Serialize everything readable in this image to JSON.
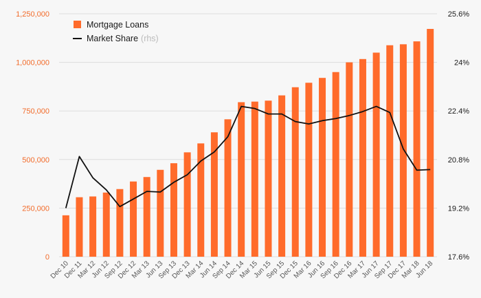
{
  "chart_data": {
    "type": "bar",
    "categories": [
      "Dec 10",
      "Dec 11",
      "Mar 12",
      "Jun 12",
      "Sep 12",
      "Dec 12",
      "Mar 13",
      "Jun 13",
      "Sep 13",
      "Dec 13",
      "Mar 14",
      "Jun 14",
      "Sep 14",
      "Dec 14",
      "Mar 15",
      "Jun 15",
      "Sep 15",
      "Dec 15",
      "Mar 16",
      "Jun 16",
      "Sep 16",
      "Dec 16",
      "Mar 17",
      "Jun 17",
      "Sep 17",
      "Dec 17",
      "Mar 18",
      "Jun 18"
    ],
    "series": [
      {
        "name": "Mortgage Loans",
        "axis": "left",
        "chart_type": "bar",
        "color": "#ff6b2b",
        "values": [
          213000,
          306000,
          310000,
          330000,
          348000,
          387000,
          410000,
          447000,
          481000,
          537000,
          583000,
          640000,
          707000,
          795000,
          798000,
          803000,
          830000,
          872000,
          895000,
          920000,
          950000,
          1000000,
          1017000,
          1050000,
          1088000,
          1093000,
          1108000,
          1172000
        ]
      },
      {
        "name": "Market Share",
        "name_suffix": "(rhs)",
        "axis": "right",
        "chart_type": "line",
        "color": "#111111",
        "values": [
          19.2,
          20.9,
          20.2,
          19.8,
          19.25,
          19.5,
          19.75,
          19.73,
          20.05,
          20.3,
          20.75,
          21.05,
          21.55,
          22.55,
          22.48,
          22.3,
          22.3,
          22.05,
          21.97,
          22.08,
          22.15,
          22.25,
          22.38,
          22.55,
          22.35,
          21.15,
          20.45,
          20.47
        ]
      }
    ],
    "y_left": {
      "lim": [
        0,
        1250000
      ],
      "ticks": [
        "0",
        "250,000",
        "500,000",
        "750,000",
        "1,000,000",
        "1,250,000"
      ],
      "color": "#f26b2a"
    },
    "y_right": {
      "lim": [
        17.6,
        25.6
      ],
      "ticks": [
        "17.6%",
        "19.2%",
        "20.8%",
        "22.4%",
        "24%",
        "25.6%"
      ],
      "color": "#1a1a1a"
    },
    "grid": true,
    "legend": "top-left",
    "title": "",
    "xlabel": "",
    "ylabel": ""
  }
}
